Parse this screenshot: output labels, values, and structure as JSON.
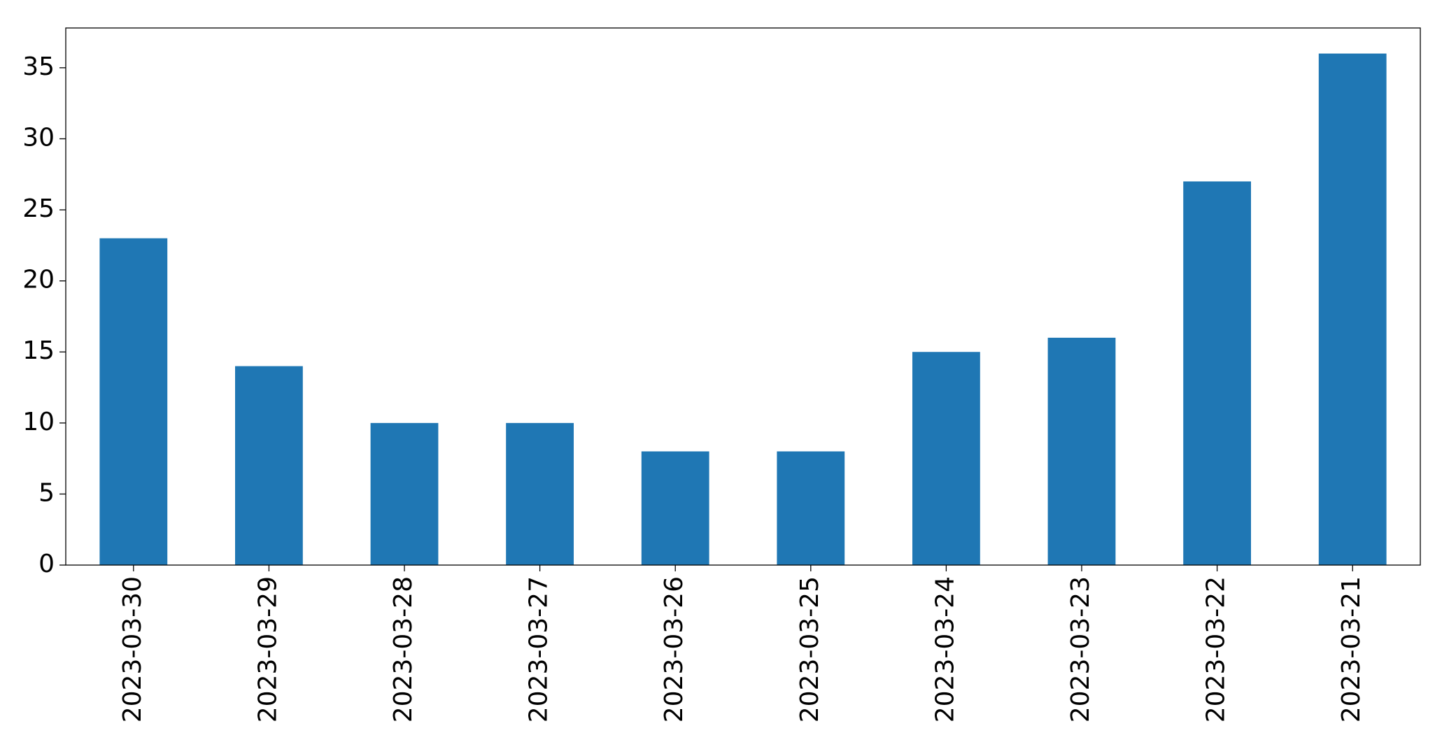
{
  "chart_data": {
    "type": "bar",
    "categories": [
      "2023-03-30",
      "2023-03-29",
      "2023-03-28",
      "2023-03-27",
      "2023-03-26",
      "2023-03-25",
      "2023-03-24",
      "2023-03-23",
      "2023-03-22",
      "2023-03-21"
    ],
    "values": [
      23,
      14,
      10,
      10,
      8,
      8,
      15,
      16,
      27,
      36
    ],
    "color": "#1f77b4",
    "ylim": [
      0,
      37.8
    ],
    "yticks": [
      0,
      5,
      10,
      15,
      20,
      25,
      30,
      35
    ],
    "grid": false
  }
}
